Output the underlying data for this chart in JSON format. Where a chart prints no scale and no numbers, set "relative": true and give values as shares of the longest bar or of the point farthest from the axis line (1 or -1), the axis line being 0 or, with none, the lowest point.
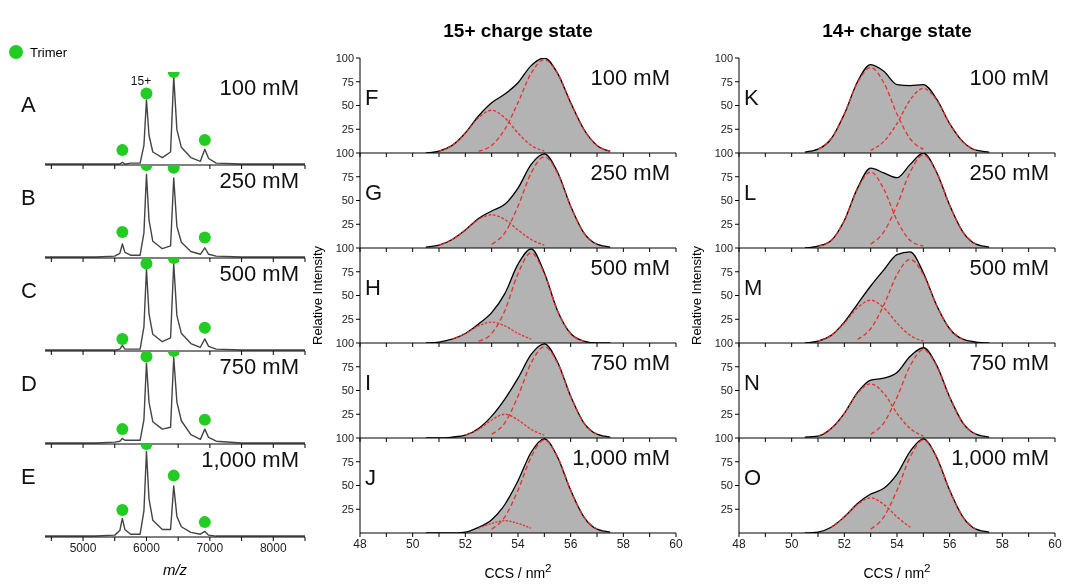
{
  "chart_data": [
    {
      "type": "line",
      "relative": true,
      "legend": "top left",
      "tick_labels": false,
      "xlim": [
        4400,
        8500
      ],
      "xticks": [
        {
          "value": 4500,
          "label": null
        },
        {
          "value": 5000,
          "label": null
        },
        {
          "value": 5500,
          "label": null
        },
        {
          "value": 6000,
          "label": null
        },
        {
          "value": 6500,
          "label": null
        },
        {
          "value": 7000,
          "label": null
        },
        {
          "value": 7500,
          "label": null
        },
        {
          "value": 8000,
          "label": null
        },
        {
          "value": 8500,
          "label": null
        }
      ],
      "x": [
        4400,
        4800,
        5200,
        5500,
        5580,
        5620,
        5660,
        5750,
        5900,
        5960,
        6000,
        6040,
        6100,
        6250,
        6380,
        6430,
        6480,
        6550,
        6700,
        6850,
        6920,
        6980,
        7100,
        7500,
        8000,
        8500
      ],
      "annotations": [
        "A",
        "100 mM",
        "15+"
      ],
      "series": [
        {
          "color": "#444444",
          "values": [
            0.01,
            0.01,
            0.01,
            0.01,
            0.01,
            0.03,
            0.01,
            0.02,
            0.02,
            0.21,
            0.7,
            0.32,
            0.14,
            0.08,
            0.14,
            0.95,
            0.38,
            0.19,
            0.08,
            0.04,
            0.17,
            0.07,
            0.02,
            0.01,
            0.01,
            0.01
          ]
        },
        {
          "type": "scatter",
          "name": "Trimer",
          "marker": "circle",
          "color": "#22cc22",
          "x": [
            5620,
            6000,
            6430,
            6920
          ],
          "values": [
            0.16,
            0.77,
            1,
            0.27
          ]
        }
      ]
    },
    {
      "type": "line",
      "relative": true,
      "tick_labels": false,
      "xlim": [
        4400,
        8500
      ],
      "xticks": [
        {
          "value": 4500,
          "label": null
        },
        {
          "value": 5000,
          "label": null
        },
        {
          "value": 5500,
          "label": null
        },
        {
          "value": 6000,
          "label": null
        },
        {
          "value": 6500,
          "label": null
        },
        {
          "value": 7000,
          "label": null
        },
        {
          "value": 7500,
          "label": null
        },
        {
          "value": 8000,
          "label": null
        },
        {
          "value": 8500,
          "label": null
        }
      ],
      "x": [
        4400,
        4800,
        5200,
        5500,
        5580,
        5620,
        5660,
        5750,
        5900,
        5960,
        6000,
        6040,
        6100,
        6250,
        6380,
        6430,
        6480,
        6550,
        6700,
        6850,
        6920,
        6980,
        7100,
        7500,
        8000,
        8500
      ],
      "annotations": [
        "B",
        "250 mM"
      ],
      "series": [
        {
          "color": "#444444",
          "values": [
            0.01,
            0.01,
            0.01,
            0.02,
            0.05,
            0.15,
            0.06,
            0.03,
            0.03,
            0.27,
            0.9,
            0.41,
            0.18,
            0.1,
            0.13,
            0.86,
            0.34,
            0.17,
            0.07,
            0.04,
            0.11,
            0.04,
            0.02,
            0.01,
            0.01,
            0.01
          ]
        },
        {
          "type": "scatter",
          "marker": "circle",
          "color": "#22cc22",
          "x": [
            5620,
            6000,
            6430,
            6920
          ],
          "values": [
            0.28,
            1,
            0.97,
            0.22
          ]
        }
      ]
    },
    {
      "type": "line",
      "relative": true,
      "tick_labels": false,
      "xlim": [
        4400,
        8500
      ],
      "xticks": [
        {
          "value": 4500,
          "label": null
        },
        {
          "value": 5000,
          "label": null
        },
        {
          "value": 5500,
          "label": null
        },
        {
          "value": 6000,
          "label": null
        },
        {
          "value": 6500,
          "label": null
        },
        {
          "value": 7000,
          "label": null
        },
        {
          "value": 7500,
          "label": null
        },
        {
          "value": 8000,
          "label": null
        },
        {
          "value": 8500,
          "label": null
        }
      ],
      "x": [
        4400,
        4800,
        5200,
        5500,
        5580,
        5620,
        5660,
        5750,
        5900,
        5960,
        6000,
        6040,
        6100,
        6250,
        6380,
        6430,
        6480,
        6550,
        6700,
        6850,
        6920,
        6980,
        7100,
        7500,
        8000,
        8500
      ],
      "annotations": [
        "C",
        "500 mM"
      ],
      "series": [
        {
          "color": "#444444",
          "values": [
            0.01,
            0.01,
            0.01,
            0.01,
            0.02,
            0.06,
            0.02,
            0.02,
            0.02,
            0.26,
            0.88,
            0.4,
            0.18,
            0.1,
            0.14,
            0.94,
            0.38,
            0.19,
            0.08,
            0.04,
            0.13,
            0.05,
            0.02,
            0.01,
            0.01,
            0.01
          ]
        },
        {
          "type": "scatter",
          "marker": "circle",
          "color": "#22cc22",
          "x": [
            5620,
            6000,
            6430,
            6920
          ],
          "values": [
            0.13,
            0.94,
            1,
            0.25
          ]
        }
      ]
    },
    {
      "type": "line",
      "relative": true,
      "tick_labels": false,
      "xlim": [
        4400,
        8500
      ],
      "xticks": [
        {
          "value": 4500,
          "label": null
        },
        {
          "value": 5000,
          "label": null
        },
        {
          "value": 5500,
          "label": null
        },
        {
          "value": 6000,
          "label": null
        },
        {
          "value": 6500,
          "label": null
        },
        {
          "value": 7000,
          "label": null
        },
        {
          "value": 7500,
          "label": null
        },
        {
          "value": 8000,
          "label": null
        },
        {
          "value": 8500,
          "label": null
        }
      ],
      "x": [
        4400,
        4800,
        5200,
        5500,
        5580,
        5620,
        5660,
        5750,
        5900,
        5960,
        6000,
        6040,
        6100,
        6250,
        6380,
        6430,
        6480,
        6550,
        6700,
        6850,
        6920,
        6980,
        7100,
        7500,
        8000,
        8500
      ],
      "annotations": [
        "D",
        "750 mM"
      ],
      "series": [
        {
          "color": "#444444",
          "values": [
            0.01,
            0.01,
            0.01,
            0.02,
            0.03,
            0.06,
            0.04,
            0.04,
            0.04,
            0.26,
            0.87,
            0.45,
            0.24,
            0.16,
            0.18,
            0.93,
            0.45,
            0.25,
            0.1,
            0.05,
            0.16,
            0.07,
            0.03,
            0.01,
            0.01,
            0.01
          ]
        },
        {
          "type": "scatter",
          "marker": "circle",
          "color": "#22cc22",
          "x": [
            5620,
            6000,
            6430,
            6920
          ],
          "values": [
            0.16,
            0.94,
            1,
            0.26
          ]
        }
      ]
    },
    {
      "type": "line",
      "relative": true,
      "xlabel": "m/z",
      "xlim": [
        4400,
        8500
      ],
      "xticks": [
        {
          "value": 4500,
          "label": null
        },
        5000,
        {
          "value": 5500,
          "label": null
        },
        6000,
        {
          "value": 6500,
          "label": null
        },
        7000,
        {
          "value": 7500,
          "label": null
        },
        8000,
        {
          "value": 8500,
          "label": null
        }
      ],
      "x": [
        4400,
        4800,
        5200,
        5500,
        5580,
        5620,
        5660,
        5750,
        5900,
        5960,
        6000,
        6040,
        6100,
        6250,
        6380,
        6430,
        6480,
        6550,
        6700,
        6850,
        6920,
        6980,
        7100,
        7500,
        8000,
        8500
      ],
      "annotations": [
        "E",
        "1,000 mM"
      ],
      "series": [
        {
          "color": "#444444",
          "values": [
            0.01,
            0.01,
            0.01,
            0.02,
            0.07,
            0.2,
            0.08,
            0.03,
            0.03,
            0.28,
            0.92,
            0.41,
            0.18,
            0.08,
            0.08,
            0.55,
            0.22,
            0.11,
            0.05,
            0.03,
            0.06,
            0.02,
            0.01,
            0.01,
            0.01,
            0.01
          ]
        },
        {
          "type": "scatter",
          "marker": "circle",
          "color": "#22cc22",
          "x": [
            5620,
            6000,
            6430,
            6920
          ],
          "values": [
            0.29,
            1,
            0.66,
            0.16
          ]
        }
      ]
    },
    {
      "type": "line",
      "title": "15+ charge state",
      "tick_labels": "y",
      "xlim": [
        48,
        60
      ],
      "ylim": [
        0,
        100
      ],
      "yticks": [
        25,
        50,
        75,
        100
      ],
      "xticks": [
        {
          "value": 48,
          "label": null
        },
        {
          "value": 49,
          "label": null
        },
        {
          "value": 50,
          "label": null
        },
        {
          "value": 51,
          "label": null
        },
        {
          "value": 52,
          "label": null
        },
        {
          "value": 53,
          "label": null
        },
        {
          "value": 54,
          "label": null
        },
        {
          "value": 55,
          "label": null
        },
        {
          "value": 56,
          "label": null
        },
        {
          "value": 57,
          "label": null
        },
        {
          "value": 58,
          "label": null
        },
        {
          "value": 59,
          "label": null
        },
        {
          "value": 60,
          "label": null
        }
      ],
      "x": [
        50.5,
        51,
        51.5,
        52,
        52.5,
        53,
        53.5,
        54,
        54.5,
        55,
        55.5,
        56,
        56.5,
        57,
        57.5
      ],
      "annotations": [
        "F",
        "100 mM"
      ],
      "series": [
        {
          "type": "area",
          "color": "#b3b3b3",
          "values": [
            0,
            2,
            8,
            21,
            39,
            53,
            62,
            74,
            92,
            100,
            84,
            53,
            25,
            8,
            2
          ]
        },
        {
          "line_style": "dashed",
          "color": "#e8302a",
          "values": [
            null,
            2,
            8,
            21,
            37,
            45,
            37,
            21,
            8,
            2,
            null,
            null,
            null,
            null,
            null
          ]
        },
        {
          "line_style": "dashed",
          "color": "#e8302a",
          "values": [
            null,
            null,
            null,
            null,
            2,
            8,
            25,
            53,
            84,
            98,
            84,
            53,
            25,
            8,
            2
          ]
        }
      ]
    },
    {
      "type": "line",
      "tick_labels": "y",
      "xlim": [
        48,
        60
      ],
      "ylim": [
        0,
        100
      ],
      "yticks": [
        25,
        50,
        75,
        100
      ],
      "xticks": [
        {
          "value": 48,
          "label": null
        },
        {
          "value": 49,
          "label": null
        },
        {
          "value": 50,
          "label": null
        },
        {
          "value": 51,
          "label": null
        },
        {
          "value": 52,
          "label": null
        },
        {
          "value": 53,
          "label": null
        },
        {
          "value": 54,
          "label": null
        },
        {
          "value": 55,
          "label": null
        },
        {
          "value": 56,
          "label": null
        },
        {
          "value": 57,
          "label": null
        },
        {
          "value": 58,
          "label": null
        },
        {
          "value": 59,
          "label": null
        },
        {
          "value": 60,
          "label": null
        }
      ],
      "x": [
        50.5,
        51,
        51.5,
        52,
        52.5,
        53,
        53.5,
        54,
        54.5,
        55,
        55.5,
        56,
        56.5,
        57,
        57.5
      ],
      "annotations": [
        "G",
        "250 mM"
      ],
      "series": [
        {
          "type": "area",
          "color": "#b3b3b3",
          "values": [
            1,
            3,
            9,
            19,
            31,
            39,
            46,
            63,
            88,
            99,
            80,
            44,
            16,
            4,
            1
          ]
        },
        {
          "line_style": "dashed",
          "color": "#e8302a",
          "values": [
            null,
            3,
            9,
            19,
            30,
            35,
            30,
            19,
            9,
            3,
            null,
            null,
            null,
            null,
            null
          ]
        },
        {
          "line_style": "dashed",
          "color": "#e8302a",
          "values": [
            null,
            null,
            null,
            null,
            null,
            4,
            16,
            44,
            79,
            96,
            79,
            44,
            16,
            4,
            null
          ]
        }
      ]
    },
    {
      "type": "line",
      "ylabel": "Relative Intensity",
      "tick_labels": "y",
      "xlim": [
        48,
        60
      ],
      "ylim": [
        0,
        100
      ],
      "yticks": [
        25,
        50,
        75,
        100
      ],
      "xticks": [
        {
          "value": 48,
          "label": null
        },
        {
          "value": 49,
          "label": null
        },
        {
          "value": 50,
          "label": null
        },
        {
          "value": 51,
          "label": null
        },
        {
          "value": 52,
          "label": null
        },
        {
          "value": 53,
          "label": null
        },
        {
          "value": 54,
          "label": null
        },
        {
          "value": 55,
          "label": null
        },
        {
          "value": 56,
          "label": null
        },
        {
          "value": 57,
          "label": null
        },
        {
          "value": 58,
          "label": null
        },
        {
          "value": 59,
          "label": null
        },
        {
          "value": 60,
          "label": null
        }
      ],
      "x": [
        50.5,
        51,
        51.5,
        52,
        52.5,
        53,
        53.5,
        54,
        54.5,
        55,
        55.5,
        56,
        56.5,
        57,
        57.5
      ],
      "annotations": [
        "H",
        "500 mM"
      ],
      "series": [
        {
          "type": "area",
          "color": "#b3b3b3",
          "values": [
            0,
            1,
            4,
            10,
            20,
            32,
            52,
            83,
            99,
            74,
            34,
            10,
            2,
            0,
            0
          ]
        },
        {
          "line_style": "dashed",
          "color": "#e8302a",
          "values": [
            null,
            null,
            4,
            10,
            18,
            22,
            18,
            10,
            4,
            null,
            null,
            null,
            null,
            null,
            null
          ]
        },
        {
          "line_style": "dashed",
          "color": "#e8302a",
          "values": [
            null,
            null,
            null,
            null,
            2,
            10,
            34,
            73,
            95,
            73,
            34,
            10,
            2,
            null,
            null
          ]
        }
      ]
    },
    {
      "type": "line",
      "tick_labels": "y",
      "xlim": [
        48,
        60
      ],
      "ylim": [
        0,
        100
      ],
      "yticks": [
        25,
        50,
        75,
        100
      ],
      "xticks": [
        {
          "value": 48,
          "label": null
        },
        {
          "value": 49,
          "label": null
        },
        {
          "value": 50,
          "label": null
        },
        {
          "value": 51,
          "label": null
        },
        {
          "value": 52,
          "label": null
        },
        {
          "value": 53,
          "label": null
        },
        {
          "value": 54,
          "label": null
        },
        {
          "value": 55,
          "label": null
        },
        {
          "value": 56,
          "label": null
        },
        {
          "value": 57,
          "label": null
        },
        {
          "value": 58,
          "label": null
        },
        {
          "value": 59,
          "label": null
        },
        {
          "value": 60,
          "label": null
        }
      ],
      "x": [
        50.5,
        51,
        51.5,
        52,
        52.5,
        53,
        53.5,
        54,
        54.5,
        55,
        55.5,
        56,
        56.5,
        57,
        57.5
      ],
      "annotations": [
        "I",
        "750 mM"
      ],
      "series": [
        {
          "type": "area",
          "color": "#b3b3b3",
          "values": [
            0,
            0,
            1,
            3,
            10,
            23,
            41,
            63,
            88,
            99,
            80,
            44,
            16,
            4,
            1
          ]
        },
        {
          "line_style": "dashed",
          "color": "#e8302a",
          "values": [
            null,
            null,
            null,
            3,
            9,
            19,
            25,
            19,
            9,
            3,
            null,
            null,
            null,
            null,
            null
          ]
        },
        {
          "line_style": "dashed",
          "color": "#e8302a",
          "values": [
            null,
            null,
            null,
            null,
            null,
            4,
            16,
            44,
            79,
            96,
            79,
            44,
            16,
            4,
            null
          ]
        }
      ]
    },
    {
      "type": "line",
      "xlabel": "CCS / nm$^{2}$",
      "xlim": [
        48,
        60
      ],
      "ylim": [
        0,
        100
      ],
      "yticks": [
        25,
        50,
        75,
        100
      ],
      "xticks": [
        48,
        {
          "value": 49,
          "label": null
        },
        50,
        {
          "value": 51,
          "label": null
        },
        52,
        {
          "value": 53,
          "label": null
        },
        54,
        {
          "value": 55,
          "label": null
        },
        56,
        {
          "value": 57,
          "label": null
        },
        58,
        {
          "value": 59,
          "label": null
        },
        60
      ],
      "x": [
        50.5,
        51,
        51.5,
        52,
        52.5,
        53,
        53.5,
        54,
        54.5,
        55,
        55.5,
        56,
        56.5,
        57,
        57.5
      ],
      "annotations": [
        "J",
        "1,000 mM"
      ],
      "series": [
        {
          "type": "area",
          "color": "#b3b3b3",
          "values": [
            0,
            0,
            0,
            1,
            6,
            14,
            30,
            55,
            85,
            99,
            80,
            45,
            17,
            4,
            1
          ]
        },
        {
          "line_style": "dashed",
          "color": "#e8302a",
          "values": [
            null,
            null,
            null,
            null,
            5,
            10,
            13,
            10,
            5,
            null,
            null,
            null,
            null,
            null,
            null
          ]
        },
        {
          "line_style": "dashed",
          "color": "#e8302a",
          "values": [
            null,
            null,
            null,
            null,
            null,
            4,
            17,
            45,
            80,
            98,
            80,
            45,
            17,
            4,
            null
          ]
        }
      ]
    },
    {
      "type": "line",
      "title": "14+ charge state",
      "tick_labels": "y",
      "xlim": [
        48,
        60
      ],
      "ylim": [
        0,
        100
      ],
      "yticks": [
        25,
        50,
        75,
        100
      ],
      "xticks": [
        {
          "value": 48,
          "label": null
        },
        {
          "value": 49,
          "label": null
        },
        {
          "value": 50,
          "label": null
        },
        {
          "value": 51,
          "label": null
        },
        {
          "value": 52,
          "label": null
        },
        {
          "value": 53,
          "label": null
        },
        {
          "value": 54,
          "label": null
        },
        {
          "value": 55,
          "label": null
        },
        {
          "value": 56,
          "label": null
        },
        {
          "value": 57,
          "label": null
        },
        {
          "value": 58,
          "label": null
        },
        {
          "value": 59,
          "label": null
        },
        {
          "value": 60,
          "label": null
        }
      ],
      "x": [
        50.5,
        51,
        51.5,
        52,
        52.5,
        53,
        53.5,
        54,
        54.5,
        55,
        55.5,
        56,
        56.5,
        57,
        57.5
      ],
      "annotations": [
        "K",
        "100 mM"
      ],
      "series": [
        {
          "type": "area",
          "color": "#b3b3b3",
          "values": [
            1,
            4,
            15,
            41,
            75,
            93,
            86,
            72,
            71,
            72,
            57,
            31,
            12,
            3,
            1
          ]
        },
        {
          "line_style": "dashed",
          "color": "#e8302a",
          "values": [
            null,
            4,
            15,
            41,
            74,
            90,
            74,
            41,
            15,
            4,
            null,
            null,
            null,
            null,
            null
          ]
        },
        {
          "line_style": "dashed",
          "color": "#e8302a",
          "values": [
            null,
            null,
            null,
            null,
            null,
            3,
            12,
            31,
            56,
            68,
            56,
            31,
            12,
            3,
            null
          ]
        }
      ]
    },
    {
      "type": "line",
      "tick_labels": "y",
      "xlim": [
        48,
        60
      ],
      "ylim": [
        0,
        100
      ],
      "yticks": [
        25,
        50,
        75,
        100
      ],
      "xticks": [
        {
          "value": 48,
          "label": null
        },
        {
          "value": 49,
          "label": null
        },
        {
          "value": 50,
          "label": null
        },
        {
          "value": 51,
          "label": null
        },
        {
          "value": 52,
          "label": null
        },
        {
          "value": 53,
          "label": null
        },
        {
          "value": 54,
          "label": null
        },
        {
          "value": 55,
          "label": null
        },
        {
          "value": 56,
          "label": null
        },
        {
          "value": 57,
          "label": null
        },
        {
          "value": 58,
          "label": null
        },
        {
          "value": 59,
          "label": null
        },
        {
          "value": 60,
          "label": null
        }
      ],
      "x": [
        50.5,
        51,
        51.5,
        52,
        52.5,
        53,
        53.5,
        54,
        54.5,
        55,
        55.5,
        56,
        56.5,
        57,
        57.5
      ],
      "annotations": [
        "L",
        "250 mM"
      ],
      "series": [
        {
          "type": "area",
          "color": "#b3b3b3",
          "values": [
            0,
            2,
            8,
            29,
            63,
            84,
            79,
            74,
            88,
            100,
            80,
            45,
            17,
            4,
            1
          ]
        },
        {
          "line_style": "dashed",
          "color": "#e8302a",
          "values": [
            null,
            2,
            8,
            29,
            62,
            80,
            62,
            29,
            8,
            2,
            null,
            null,
            null,
            null,
            null
          ]
        },
        {
          "line_style": "dashed",
          "color": "#e8302a",
          "values": [
            null,
            null,
            null,
            null,
            null,
            4,
            17,
            45,
            80,
            98,
            80,
            45,
            17,
            4,
            null
          ]
        }
      ]
    },
    {
      "type": "line",
      "ylabel": "Relative Intensity",
      "tick_labels": "y",
      "xlim": [
        48,
        60
      ],
      "ylim": [
        0,
        100
      ],
      "yticks": [
        25,
        50,
        75,
        100
      ],
      "xticks": [
        {
          "value": 48,
          "label": null
        },
        {
          "value": 49,
          "label": null
        },
        {
          "value": 50,
          "label": null
        },
        {
          "value": 51,
          "label": null
        },
        {
          "value": 52,
          "label": null
        },
        {
          "value": 53,
          "label": null
        },
        {
          "value": 54,
          "label": null
        },
        {
          "value": 55,
          "label": null
        },
        {
          "value": 56,
          "label": null
        },
        {
          "value": 57,
          "label": null
        },
        {
          "value": 58,
          "label": null
        },
        {
          "value": 59,
          "label": null
        },
        {
          "value": 60,
          "label": null
        }
      ],
      "x": [
        50.5,
        51,
        51.5,
        52,
        52.5,
        53,
        53.5,
        54,
        54.5,
        55,
        55.5,
        56,
        56.5,
        57,
        57.5
      ],
      "annotations": [
        "M",
        "500 mM"
      ],
      "series": [
        {
          "type": "area",
          "color": "#b3b3b3",
          "values": [
            0,
            2,
            8,
            22,
            41,
            60,
            77,
            93,
            96,
            74,
            40,
            15,
            4,
            1,
            0
          ]
        },
        {
          "line_style": "dashed",
          "color": "#e8302a",
          "values": [
            null,
            2,
            8,
            21,
            37,
            45,
            37,
            21,
            8,
            2,
            null,
            null,
            null,
            null,
            null
          ]
        },
        {
          "line_style": "dashed",
          "color": "#e8302a",
          "values": [
            null,
            null,
            null,
            null,
            4,
            15,
            40,
            72,
            88,
            72,
            40,
            15,
            4,
            null,
            null
          ]
        }
      ]
    },
    {
      "type": "line",
      "tick_labels": "y",
      "xlim": [
        48,
        60
      ],
      "ylim": [
        0,
        100
      ],
      "yticks": [
        25,
        50,
        75,
        100
      ],
      "xticks": [
        {
          "value": 48,
          "label": null
        },
        {
          "value": 49,
          "label": null
        },
        {
          "value": 50,
          "label": null
        },
        {
          "value": 51,
          "label": null
        },
        {
          "value": 52,
          "label": null
        },
        {
          "value": 53,
          "label": null
        },
        {
          "value": 54,
          "label": null
        },
        {
          "value": 55,
          "label": null
        },
        {
          "value": 56,
          "label": null
        },
        {
          "value": 57,
          "label": null
        },
        {
          "value": 58,
          "label": null
        },
        {
          "value": 59,
          "label": null
        },
        {
          "value": 60,
          "label": null
        }
      ],
      "x": [
        50.5,
        51,
        51.5,
        52,
        52.5,
        53,
        53.5,
        54,
        54.5,
        55,
        55.5,
        56,
        56.5,
        57,
        57.5
      ],
      "annotations": [
        "N",
        "750 mM"
      ],
      "series": [
        {
          "type": "area",
          "color": "#b3b3b3",
          "values": [
            1,
            2,
            10,
            26,
            48,
            61,
            63,
            69,
            86,
            95,
            77,
            43,
            16,
            4,
            1
          ]
        },
        {
          "line_style": "dashed",
          "color": "#e8302a",
          "values": [
            null,
            2,
            10,
            26,
            47,
            57,
            47,
            26,
            10,
            2,
            null,
            null,
            null,
            null,
            null
          ]
        },
        {
          "line_style": "dashed",
          "color": "#e8302a",
          "values": [
            null,
            null,
            null,
            null,
            null,
            4,
            16,
            43,
            76,
            93,
            76,
            43,
            16,
            4,
            null
          ]
        }
      ]
    },
    {
      "type": "line",
      "xlabel": "CCS / nm$^{2}$",
      "xlim": [
        48,
        60
      ],
      "ylim": [
        0,
        100
      ],
      "yticks": [
        25,
        50,
        75,
        100
      ],
      "xticks": [
        48,
        {
          "value": 49,
          "label": null
        },
        50,
        {
          "value": 51,
          "label": null
        },
        52,
        {
          "value": 53,
          "label": null
        },
        54,
        {
          "value": 55,
          "label": null
        },
        56,
        {
          "value": 57,
          "label": null
        },
        58,
        {
          "value": 59,
          "label": null
        },
        60
      ],
      "x": [
        50.5,
        51,
        51.5,
        52,
        52.5,
        53,
        53.5,
        54,
        54.5,
        55,
        55.5,
        56,
        56.5,
        57,
        57.5
      ],
      "annotations": [
        "O",
        "1,000 mM"
      ],
      "series": [
        {
          "type": "area",
          "color": "#b3b3b3",
          "values": [
            0,
            1,
            6,
            17,
            31,
            41,
            47,
            62,
            86,
            99,
            80,
            45,
            17,
            4,
            1
          ]
        },
        {
          "line_style": "dashed",
          "color": "#e8302a",
          "values": [
            null,
            null,
            6,
            17,
            30,
            37,
            30,
            17,
            6,
            null,
            null,
            null,
            null,
            null,
            null
          ]
        },
        {
          "line_style": "dashed",
          "color": "#e8302a",
          "values": [
            null,
            null,
            null,
            null,
            null,
            4,
            17,
            45,
            80,
            98,
            80,
            45,
            17,
            4,
            null
          ]
        }
      ]
    }
  ]
}
